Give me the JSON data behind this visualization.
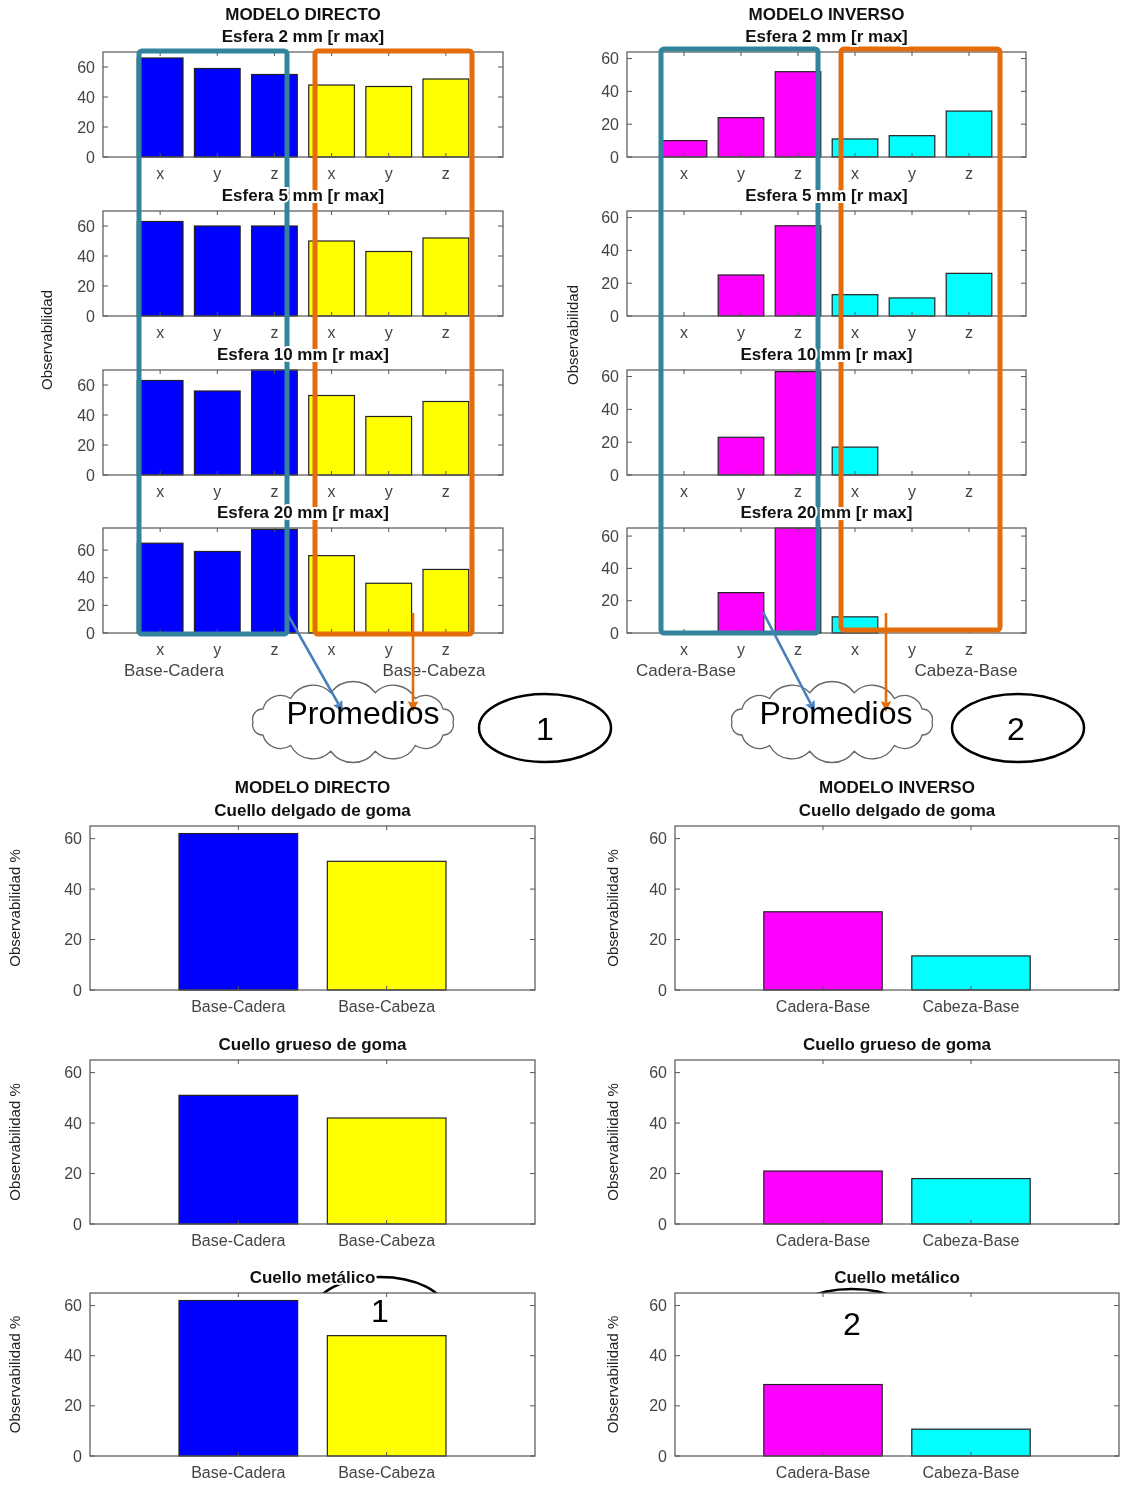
{
  "chart_data": [
    {
      "type": "bar",
      "title": "MODELO DIRECTO",
      "subtitle": "Esfera 2 mm [r max]",
      "categories": [
        "x",
        "y",
        "z",
        "x",
        "y",
        "z"
      ],
      "values": [
        66,
        59,
        55,
        48,
        47,
        52
      ],
      "colors": [
        "#0000ff",
        "#0000ff",
        "#0000ff",
        "#ffff00",
        "#ffff00",
        "#ffff00"
      ],
      "ylim": [
        0,
        70
      ],
      "yticks": [
        0,
        20,
        40,
        60
      ]
    },
    {
      "type": "bar",
      "title": "MODELO INVERSO",
      "subtitle": "Esfera 2 mm [r max]",
      "categories": [
        "x",
        "y",
        "z",
        "x",
        "y",
        "z"
      ],
      "values": [
        10,
        24,
        52,
        11,
        13,
        28
      ],
      "colors": [
        "#ff00ff",
        "#ff00ff",
        "#ff00ff",
        "#00ffff",
        "#00ffff",
        "#00ffff"
      ],
      "ylim": [
        0,
        64
      ],
      "yticks": [
        0,
        20,
        40,
        60
      ]
    },
    {
      "type": "bar",
      "title": "Esfera 5 mm [r max]",
      "ylabel": "Observabilidad",
      "categories": [
        "x",
        "y",
        "z",
        "x",
        "y",
        "z"
      ],
      "values": [
        63,
        60,
        60,
        50,
        43,
        52
      ],
      "colors": [
        "#0000ff",
        "#0000ff",
        "#0000ff",
        "#ffff00",
        "#ffff00",
        "#ffff00"
      ],
      "ylim": [
        0,
        70
      ],
      "yticks": [
        0,
        20,
        40,
        60
      ]
    },
    {
      "type": "bar",
      "title": "Esfera 5 mm [r max]",
      "ylabel": "Observabilidad",
      "categories": [
        "x",
        "y",
        "z",
        "x",
        "y",
        "z"
      ],
      "values": [
        0,
        25,
        55,
        13,
        11,
        26
      ],
      "colors": [
        "#ff00ff",
        "#ff00ff",
        "#ff00ff",
        "#00ffff",
        "#00ffff",
        "#00ffff"
      ],
      "ylim": [
        0,
        64
      ],
      "yticks": [
        0,
        20,
        40,
        60
      ]
    },
    {
      "type": "bar",
      "title": "Esfera 10 mm [r max]",
      "categories": [
        "x",
        "y",
        "z",
        "x",
        "y",
        "z"
      ],
      "values": [
        63,
        56,
        70,
        53,
        39,
        49
      ],
      "colors": [
        "#0000ff",
        "#0000ff",
        "#0000ff",
        "#ffff00",
        "#ffff00",
        "#ffff00"
      ],
      "ylim": [
        0,
        70
      ],
      "yticks": [
        0,
        20,
        40,
        60
      ]
    },
    {
      "type": "bar",
      "title": "Esfera 10 mm [r max]",
      "categories": [
        "x",
        "y",
        "z",
        "x",
        "y",
        "z"
      ],
      "values": [
        0,
        23,
        63,
        17,
        0,
        0
      ],
      "colors": [
        "#ff00ff",
        "#ff00ff",
        "#ff00ff",
        "#00ffff",
        "#00ffff",
        "#00ffff"
      ],
      "ylim": [
        0,
        64
      ],
      "yticks": [
        0,
        20,
        40,
        60
      ]
    },
    {
      "type": "bar",
      "title": "Esfera 20 mm [r max]",
      "categories": [
        "x",
        "y",
        "z",
        "x",
        "y",
        "z"
      ],
      "values": [
        65,
        59,
        75,
        56,
        36,
        46
      ],
      "colors": [
        "#0000ff",
        "#0000ff",
        "#0000ff",
        "#ffff00",
        "#ffff00",
        "#ffff00"
      ],
      "ylim": [
        0,
        76
      ],
      "yticks": [
        0,
        20,
        40,
        60
      ],
      "annotations": [
        "Base-Cadera",
        "Base-Cabeza",
        "Promedios",
        "1"
      ]
    },
    {
      "type": "bar",
      "title": "Esfera 20 mm [r max]",
      "categories": [
        "x",
        "y",
        "z",
        "x",
        "y",
        "z"
      ],
      "values": [
        0,
        25,
        65,
        10,
        0,
        0
      ],
      "colors": [
        "#ff00ff",
        "#ff00ff",
        "#ff00ff",
        "#00ffff",
        "#00ffff",
        "#00ffff"
      ],
      "ylim": [
        0,
        65
      ],
      "yticks": [
        0,
        20,
        40,
        60
      ],
      "annotations": [
        "Cadera-Base",
        "Cabeza-Base",
        "Promedios",
        "2"
      ]
    },
    {
      "type": "bar",
      "title": "MODELO DIRECTO",
      "subtitle": "Cuello delgado de goma",
      "ylabel": "Observabilidad %",
      "categories": [
        "Base-Cadera",
        "Base-Cabeza"
      ],
      "values": [
        62,
        51
      ],
      "colors": [
        "#0000ff",
        "#ffff00"
      ],
      "ylim": [
        0,
        65
      ],
      "yticks": [
        0,
        20,
        40,
        60
      ]
    },
    {
      "type": "bar",
      "title": "MODELO INVERSO",
      "subtitle": "Cuello delgado de goma",
      "ylabel": "Observabilidad %",
      "categories": [
        "Cadera-Base",
        "Cabeza-Base"
      ],
      "values": [
        31,
        13.5
      ],
      "colors": [
        "#ff00ff",
        "#00ffff"
      ],
      "ylim": [
        0,
        65
      ],
      "yticks": [
        0,
        20,
        40,
        60
      ]
    },
    {
      "type": "bar",
      "title": "Cuello grueso de goma",
      "ylabel": "Observabilidad %",
      "categories": [
        "Base-Cadera",
        "Base-Cabeza"
      ],
      "values": [
        51,
        42
      ],
      "colors": [
        "#0000ff",
        "#ffff00"
      ],
      "ylim": [
        0,
        65
      ],
      "yticks": [
        0,
        20,
        40,
        60
      ]
    },
    {
      "type": "bar",
      "title": "Cuello grueso de goma",
      "ylabel": "Observabilidad %",
      "categories": [
        "Cadera-Base",
        "Cabeza-Base"
      ],
      "values": [
        21,
        18
      ],
      "colors": [
        "#ff00ff",
        "#00ffff"
      ],
      "ylim": [
        0,
        65
      ],
      "yticks": [
        0,
        20,
        40,
        60
      ]
    },
    {
      "type": "bar",
      "title": "Cuello metálico",
      "ylabel": "Observabilidad %",
      "categories": [
        "Base-Cadera",
        "Base-Cabeza"
      ],
      "values": [
        62,
        48
      ],
      "colors": [
        "#0000ff",
        "#ffff00"
      ],
      "ylim": [
        0,
        65
      ],
      "yticks": [
        0,
        20,
        40,
        60
      ],
      "annotations": [
        "1"
      ]
    },
    {
      "type": "bar",
      "title": "Cuello metálico",
      "ylabel": "Observabilidad %",
      "categories": [
        "Cadera-Base",
        "Cabeza-Base"
      ],
      "values": [
        28.5,
        10.7
      ],
      "colors": [
        "#ff00ff",
        "#00ffff"
      ],
      "ylim": [
        0,
        65
      ],
      "yticks": [
        0,
        20,
        40,
        60
      ],
      "annotations": [
        "2"
      ]
    }
  ]
}
